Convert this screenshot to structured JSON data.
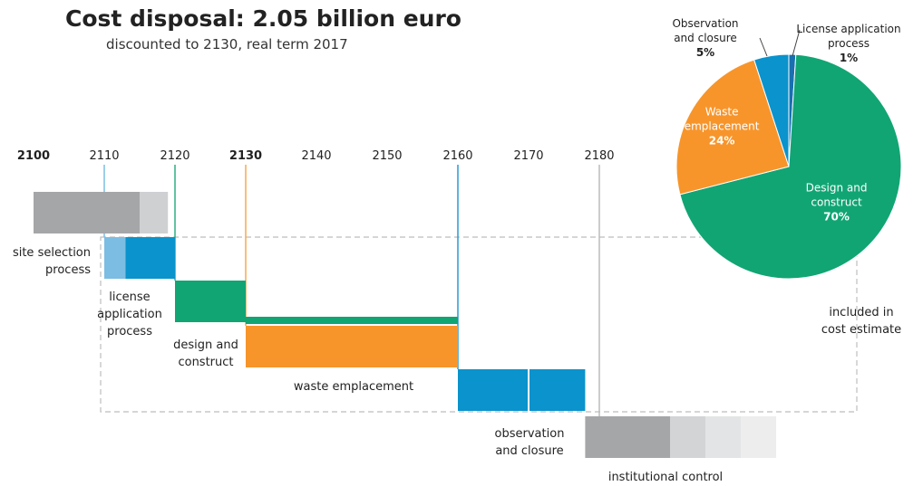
{
  "header": {
    "title": "Cost disposal: 2.05 billion euro",
    "subtitle": "discounted to 2130, real term 2017"
  },
  "chart_data": [
    {
      "type": "bar",
      "subtype": "gantt-timeline",
      "axis": {
        "ticks": [
          "2100",
          "2110",
          "2120",
          "2130",
          "2140",
          "2150",
          "2160",
          "2170",
          "2180"
        ],
        "bold_ticks": [
          "2100",
          "2130"
        ],
        "range": [
          2100,
          2180
        ]
      },
      "phases": [
        {
          "name": "site selection process",
          "label_lines": [
            "site selection",
            "process"
          ],
          "start": 2100,
          "end": 2119,
          "color": "#a5a6a8",
          "included": false,
          "segments": [
            {
              "start": 2100,
              "end": 2115,
              "color": "#a5a6a8"
            },
            {
              "start": 2115,
              "end": 2119,
              "color": "#cfd0d2"
            }
          ]
        },
        {
          "name": "license application process",
          "label_lines": [
            "license",
            "application",
            "process"
          ],
          "start": 2110,
          "end": 2120,
          "color": "#0a93cc",
          "included": true,
          "segments": [
            {
              "start": 2110,
              "end": 2113,
              "color": "#7cbde3"
            },
            {
              "start": 2113,
              "end": 2120,
              "color": "#0a93cc"
            }
          ]
        },
        {
          "name": "design and construct",
          "label_lines": [
            "design and",
            "construct"
          ],
          "start": 2120,
          "end": 2130,
          "color": "#11a574",
          "included": true,
          "segments": [
            {
              "start": 2120,
              "end": 2130,
              "color": "#11a574"
            },
            {
              "start": 2130,
              "end": 2160,
              "color": "#11a574",
              "thin": true
            }
          ]
        },
        {
          "name": "waste emplacement",
          "label_lines": [
            "waste emplacement"
          ],
          "start": 2130,
          "end": 2160,
          "color": "#f7952b",
          "included": true,
          "segments": [
            {
              "start": 2130,
              "end": 2160,
              "color": "#f7952b"
            }
          ]
        },
        {
          "name": "observation and closure",
          "label_lines": [
            "observation",
            "and closure"
          ],
          "start": 2160,
          "end": 2178,
          "color": "#0a93cc",
          "included": true,
          "segments": [
            {
              "start": 2160,
              "end": 2170,
              "color": "#0a93cc"
            },
            {
              "start": 2170,
              "end": 2178,
              "color": "#0a93cc"
            }
          ]
        },
        {
          "name": "institutional control",
          "label_lines": [
            "institutional control"
          ],
          "start": 2178,
          "end": 2190,
          "color": "#a5a6a8",
          "included": false,
          "segments": [
            {
              "start": 2178,
              "end": 2190,
              "color": "#a5a6a8"
            },
            {
              "start": 2190,
              "end": 2195,
              "color": "#d3d4d6"
            },
            {
              "start": 2195,
              "end": 2200,
              "color": "#e3e4e5"
            },
            {
              "start": 2200,
              "end": 2205,
              "color": "#ededee"
            }
          ]
        }
      ],
      "annotation": {
        "label_lines": [
          "included in",
          "cost estimate"
        ],
        "style": "dashed box"
      }
    },
    {
      "type": "pie",
      "slices": [
        {
          "name": "Design and construct",
          "label_lines": [
            "Design and",
            "construct"
          ],
          "pct_label": "70%",
          "value": 70,
          "color": "#11a574",
          "label_color": "#ffffff"
        },
        {
          "name": "Waste emplacement",
          "label_lines": [
            "Waste",
            "emplacement"
          ],
          "pct_label": "24%",
          "value": 24,
          "color": "#f7952b",
          "label_color": "#ffffff"
        },
        {
          "name": "Observation and closure",
          "label_lines": [
            "Observation",
            "and closure"
          ],
          "pct_label": "5%",
          "value": 5,
          "color": "#0a93cc",
          "label_color": "#222222"
        },
        {
          "name": "License application process",
          "label_lines": [
            "License application",
            "process"
          ],
          "pct_label": "1%",
          "value": 1,
          "color": "#1a6fb0",
          "label_color": "#222222"
        }
      ]
    }
  ]
}
